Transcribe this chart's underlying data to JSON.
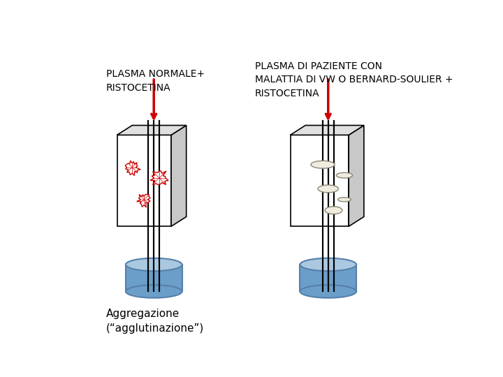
{
  "bg_color": "#ffffff",
  "title_left": "PLASMA NORMALE+\nRISTOCETINA",
  "title_right": "PLASMA DI PAZIENTE CON\nMALATTIA DI VW O BERNARD-SOULIER +\nRISTOCETINA",
  "caption": "Aggregazione\n(“agglutinazione”)",
  "box_face_color": "#ffffff",
  "box_side_color": "#c8c8c8",
  "box_top_color": "#e0e0e0",
  "cylinder_color_top": "#aac8e0",
  "cylinder_color_body": "#6b9ec8",
  "cylinder_edge": "#5580aa",
  "rod_color": "#000000",
  "arrow_color": "#cc0000",
  "platelet_edge": "#cc0000",
  "platelet_face": "#ffffff",
  "disc_face": "#f0ece0",
  "disc_edge": "#888877"
}
